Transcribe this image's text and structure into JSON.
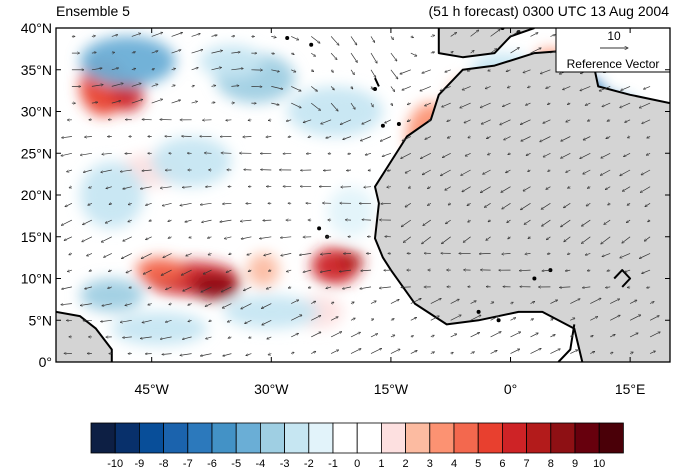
{
  "header": {
    "left_title": "Ensemble 5",
    "right_title": "(51 h forecast) 0300 UTC 13 Aug 2004"
  },
  "map": {
    "lat_range": [
      0,
      40
    ],
    "lon_range": [
      -57,
      20
    ],
    "lat_ticks": [
      {
        "value": 0,
        "label": "0°"
      },
      {
        "value": 5,
        "label": "5°N"
      },
      {
        "value": 10,
        "label": "10°N"
      },
      {
        "value": 15,
        "label": "15°N"
      },
      {
        "value": 20,
        "label": "20°N"
      },
      {
        "value": 25,
        "label": "25°N"
      },
      {
        "value": 30,
        "label": "30°N"
      },
      {
        "value": 35,
        "label": "35°N"
      },
      {
        "value": 40,
        "label": "40°N"
      }
    ],
    "lon_ticks": [
      {
        "value": -45,
        "label": "45°W"
      },
      {
        "value": -30,
        "label": "30°W"
      },
      {
        "value": -15,
        "label": "15°W"
      },
      {
        "value": 0,
        "label": "0°"
      },
      {
        "value": 15,
        "label": "15°E"
      }
    ],
    "land_color": "#d4d4d4",
    "coast_color": "#000000",
    "vector_color": "#333333",
    "reference_vector": {
      "magnitude": "10",
      "label": "Reference Vector"
    }
  },
  "colorbar": {
    "labels": [
      "-10",
      "-9",
      "-8",
      "-7",
      "-6",
      "-5",
      "-4",
      "-3",
      "-2",
      "-1",
      "0",
      "1",
      "2",
      "3",
      "4",
      "5",
      "6",
      "7",
      "8",
      "9",
      "10"
    ],
    "colors": [
      "#0d1f44",
      "#08306b",
      "#084e99",
      "#1b63ad",
      "#2c79bc",
      "#4392c6",
      "#6aaed6",
      "#9fcfe3",
      "#c6e6f2",
      "#e2f3fa",
      "#ffffff",
      "#ffffff",
      "#fde0e0",
      "#fcbba1",
      "#fc9272",
      "#f3684e",
      "#e8402f",
      "#ce2326",
      "#b31b1b",
      "#8e1014",
      "#67000d",
      "#4a0008"
    ]
  }
}
